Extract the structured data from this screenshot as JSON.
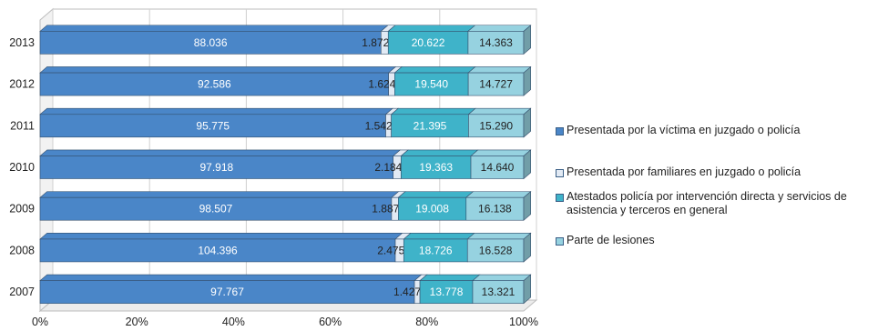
{
  "chart_data": {
    "type": "bar",
    "orientation": "horizontal",
    "stacked": "percent",
    "categories": [
      "2013",
      "2012",
      "2011",
      "2010",
      "2009",
      "2008",
      "2007"
    ],
    "series": [
      {
        "name": "Presentada por la víctima en juzgado o policía",
        "color": "#4a86c8",
        "values": [
          88036,
          92586,
          95775,
          97918,
          98507,
          104396,
          97767
        ],
        "labels": [
          "88.036",
          "92.586",
          "95.775",
          "97.918",
          "98.507",
          "104.396",
          "97.767"
        ]
      },
      {
        "name": "Presentada por familiares en juzgado o policía",
        "color": "#e2eaf4",
        "values": [
          1872,
          1624,
          1542,
          2184,
          1887,
          2475,
          1427
        ],
        "labels": [
          "1.872",
          "1.624",
          "1.542",
          "2.184",
          "1.887",
          "2.475",
          "1.427"
        ]
      },
      {
        "name": "Atestados policía por intervención directa y servicios de asistencia y terceros en general",
        "color": "#3fb3c9",
        "values": [
          20622,
          19540,
          21395,
          19363,
          19008,
          18726,
          13778
        ],
        "labels": [
          "20.622",
          "19.540",
          "21.395",
          "19.363",
          "19.008",
          "18.726",
          "13.778"
        ]
      },
      {
        "name": "Parte de lesiones",
        "color": "#96d2e0",
        "values": [
          14363,
          14727,
          15290,
          14640,
          16138,
          16528,
          13321
        ],
        "labels": [
          "14.363",
          "14.727",
          "15.290",
          "14.640",
          "16.138",
          "16.528",
          "13.321"
        ]
      }
    ],
    "xticks": [
      "0%",
      "20%",
      "40%",
      "60%",
      "80%",
      "100%"
    ],
    "xlim": [
      0,
      100
    ],
    "legend": "right",
    "grid": true
  }
}
